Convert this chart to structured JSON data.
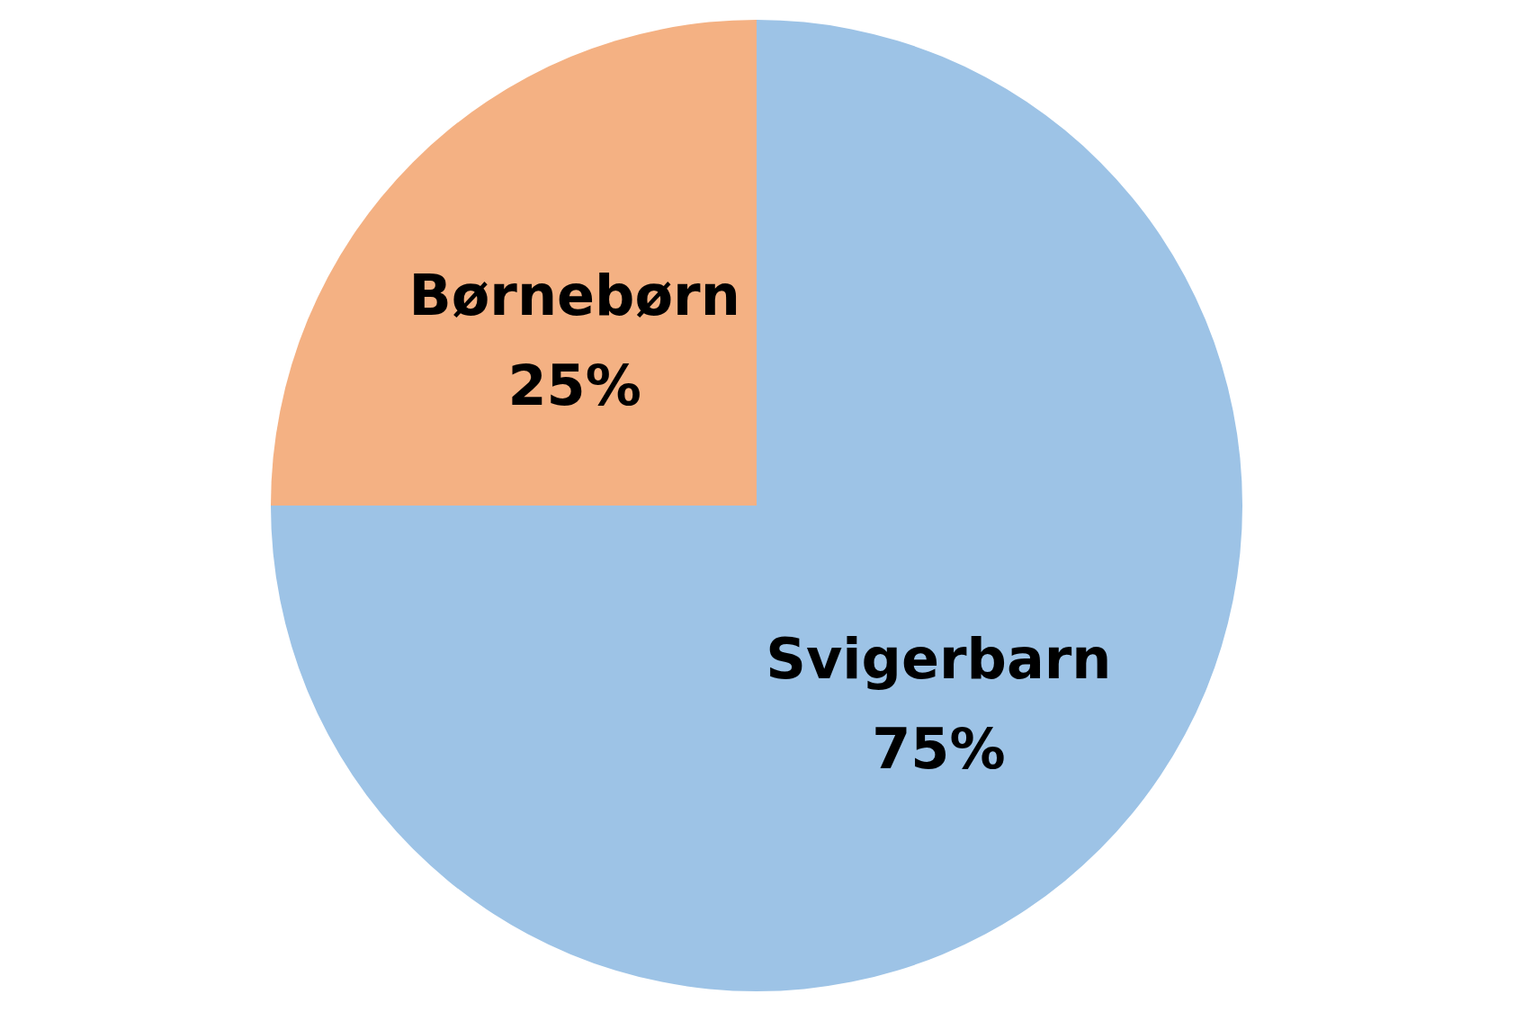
{
  "chart_data": {
    "type": "pie",
    "categories": [
      "Svigerbarn",
      "Børnebørn"
    ],
    "values": [
      75,
      25
    ],
    "value_labels": [
      "75%",
      "25%"
    ],
    "colors": [
      "#9dc3e6",
      "#f4b183"
    ]
  }
}
